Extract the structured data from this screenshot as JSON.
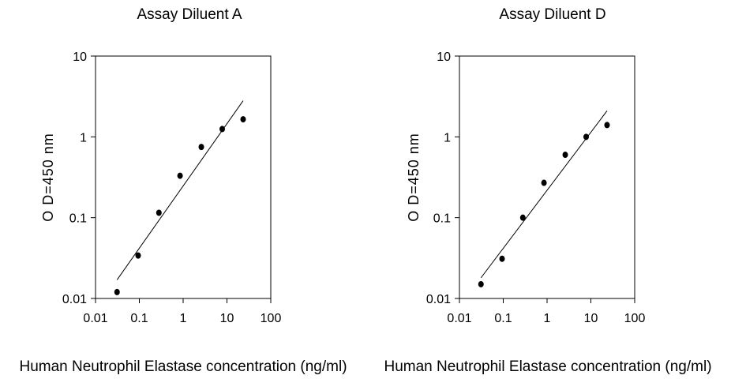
{
  "chart_data": [
    {
      "type": "scatter",
      "title": "Assay Diluent A",
      "xlabel": "Human Neutrophil Elastase concentration (ng/ml)",
      "ylabel": "O D=450  nm",
      "xscale": "log",
      "yscale": "log",
      "xlim": [
        0.01,
        100
      ],
      "ylim": [
        0.01,
        10
      ],
      "xticks": [
        "0.01",
        "0.1",
        "1",
        "10",
        "100"
      ],
      "yticks": [
        "0.01",
        "0.1",
        "1",
        "10"
      ],
      "points": [
        {
          "x": 0.031,
          "y": 0.012
        },
        {
          "x": 0.094,
          "y": 0.034
        },
        {
          "x": 0.28,
          "y": 0.115
        },
        {
          "x": 0.85,
          "y": 0.33
        },
        {
          "x": 2.6,
          "y": 0.75
        },
        {
          "x": 7.8,
          "y": 1.25
        },
        {
          "x": 23.4,
          "y": 1.65
        }
      ],
      "fit_line": [
        {
          "x": 0.031,
          "y": 0.017
        },
        {
          "x": 23.4,
          "y": 2.8
        }
      ],
      "grid": false
    },
    {
      "type": "scatter",
      "title": "Assay Diluent D",
      "xlabel": "Human Neutrophil Elastase concentration (ng/ml)",
      "ylabel": "O D=450  nm",
      "xscale": "log",
      "yscale": "log",
      "xlim": [
        0.01,
        100
      ],
      "ylim": [
        0.01,
        10
      ],
      "xticks": [
        "0.01",
        "0.1",
        "1",
        "10",
        "100"
      ],
      "yticks": [
        "0.01",
        "0.1",
        "1",
        "10"
      ],
      "points": [
        {
          "x": 0.031,
          "y": 0.015
        },
        {
          "x": 0.094,
          "y": 0.031
        },
        {
          "x": 0.28,
          "y": 0.1
        },
        {
          "x": 0.85,
          "y": 0.27
        },
        {
          "x": 2.6,
          "y": 0.6
        },
        {
          "x": 7.8,
          "y": 1.0
        },
        {
          "x": 23.4,
          "y": 1.4
        }
      ],
      "fit_line": [
        {
          "x": 0.031,
          "y": 0.018
        },
        {
          "x": 23.4,
          "y": 2.1
        }
      ],
      "grid": false
    }
  ]
}
